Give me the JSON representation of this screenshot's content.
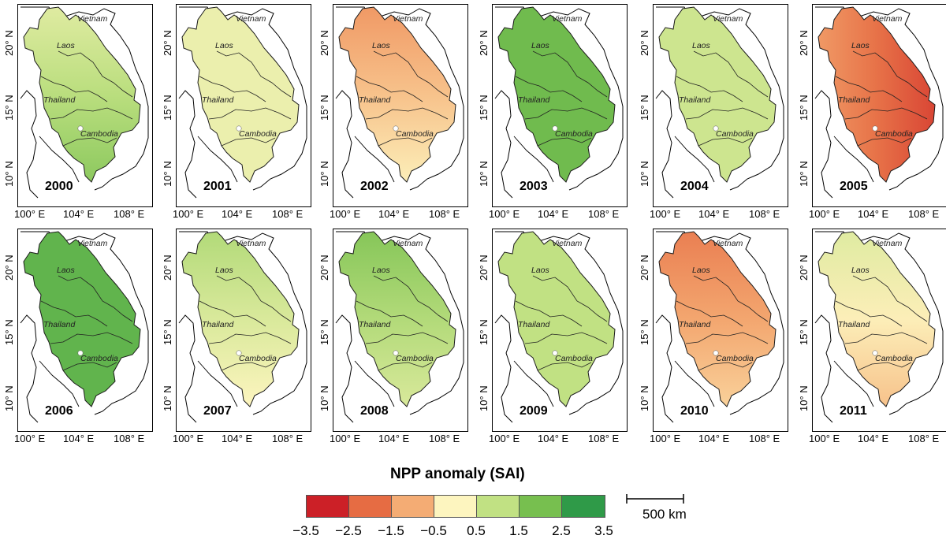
{
  "map_labels": {
    "countries": [
      "Vietnam",
      "Laos",
      "Thailand",
      "Cambodia"
    ],
    "x_ticks": [
      "100° E",
      "104° E",
      "108° E"
    ],
    "y_ticks": [
      "20° N",
      "15° N",
      "10° N"
    ]
  },
  "panels": [
    {
      "year": "2000",
      "sai": 0.6,
      "gradient": "north-neutral"
    },
    {
      "year": "2001",
      "sai": -0.2,
      "gradient": "mixed"
    },
    {
      "year": "2002",
      "sai": -1.2,
      "gradient": "north-dry"
    },
    {
      "year": "2003",
      "sai": 1.6,
      "gradient": "uniform"
    },
    {
      "year": "2004",
      "sai": 0.3,
      "gradient": "mixed"
    },
    {
      "year": "2005",
      "sai": -2.4,
      "gradient": "east-dry"
    },
    {
      "year": "2006",
      "sai": 1.8,
      "gradient": "uniform"
    },
    {
      "year": "2007",
      "sai": 0.1,
      "gradient": "south-dry"
    },
    {
      "year": "2008",
      "sai": 0.7,
      "gradient": "south-dry"
    },
    {
      "year": "2009",
      "sai": 0.5,
      "gradient": "mixed"
    },
    {
      "year": "2010",
      "sai": -1.6,
      "gradient": "north-dry"
    },
    {
      "year": "2011",
      "sai": -0.6,
      "gradient": "south-dry"
    }
  ],
  "legend": {
    "title": "NPP anomaly (SAI)",
    "colors": [
      "#cc2027",
      "#e66c43",
      "#f4ac74",
      "#fdf5bf",
      "#c1e183",
      "#77bf4f",
      "#2f9a48"
    ],
    "ticks": [
      "−3.5",
      "−2.5",
      "−1.5",
      "−0.5",
      "0.5",
      "1.5",
      "2.5",
      "3.5"
    ]
  },
  "scale_bar": {
    "label": "500  km"
  }
}
